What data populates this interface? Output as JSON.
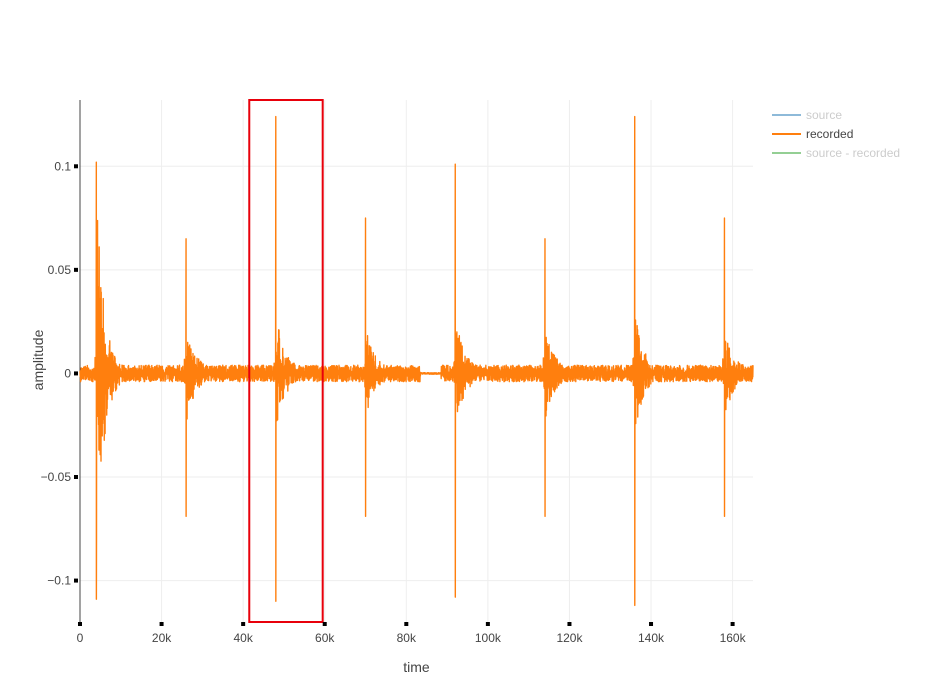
{
  "chart_data": {
    "type": "line",
    "title": "",
    "xlabel": "time",
    "ylabel": "amplitude",
    "xlim": [
      0,
      165000
    ],
    "ylim": [
      -0.12,
      0.132
    ],
    "x_ticks": [
      {
        "value": 0,
        "label": "0"
      },
      {
        "value": 20000,
        "label": "20k"
      },
      {
        "value": 40000,
        "label": "40k"
      },
      {
        "value": 60000,
        "label": "60k"
      },
      {
        "value": 80000,
        "label": "80k"
      },
      {
        "value": 100000,
        "label": "100k"
      },
      {
        "value": 120000,
        "label": "120k"
      },
      {
        "value": 140000,
        "label": "140k"
      },
      {
        "value": 160000,
        "label": "160k"
      }
    ],
    "y_ticks": [
      {
        "value": 0.1,
        "label": "0.1"
      },
      {
        "value": 0.05,
        "label": "0.05"
      },
      {
        "value": 0,
        "label": "0"
      },
      {
        "value": -0.05,
        "label": "−0.05"
      },
      {
        "value": -0.1,
        "label": "−0.1"
      }
    ],
    "grid": true,
    "legend_position": "top-right",
    "series": [
      {
        "name": "source",
        "color": "#1f77b4",
        "visible": false,
        "values": []
      },
      {
        "name": "recorded",
        "color": "#ff7f0e",
        "visible": true,
        "noise_floor": 0.004,
        "quiet_span": [
          83500,
          88500
        ],
        "transients": [
          {
            "x": 4000,
            "peak": 0.102,
            "trough": -0.109,
            "tail": 0.083
          },
          {
            "x": 26000,
            "peak": 0.065,
            "trough": -0.069,
            "tail": 0.02
          },
          {
            "x": 48000,
            "peak": 0.124,
            "trough": -0.11,
            "tail": 0.025
          },
          {
            "x": 70000,
            "peak": 0.075,
            "trough": -0.069,
            "tail": 0.017
          },
          {
            "x": 92000,
            "peak": 0.101,
            "trough": -0.108,
            "tail": 0.024
          },
          {
            "x": 114000,
            "peak": 0.065,
            "trough": -0.069,
            "tail": 0.018
          },
          {
            "x": 136000,
            "peak": 0.124,
            "trough": -0.112,
            "tail": 0.025
          },
          {
            "x": 158000,
            "peak": 0.075,
            "trough": -0.069,
            "tail": 0.017
          }
        ]
      },
      {
        "name": "source - recorded",
        "color": "#2ca02c",
        "visible": false,
        "values": []
      }
    ],
    "annotations": [
      {
        "type": "rect",
        "x0": 41500,
        "x1": 59500,
        "y0": -0.12,
        "y1": 0.132,
        "color": "#e8000b"
      }
    ],
    "colors": {
      "grid": "#eeeeee",
      "zeroline": "#444444",
      "axis_line": "#444444",
      "tick_text": "#444444",
      "legend_hidden_text": "#999999",
      "legend_visible_text": "#444444"
    }
  }
}
